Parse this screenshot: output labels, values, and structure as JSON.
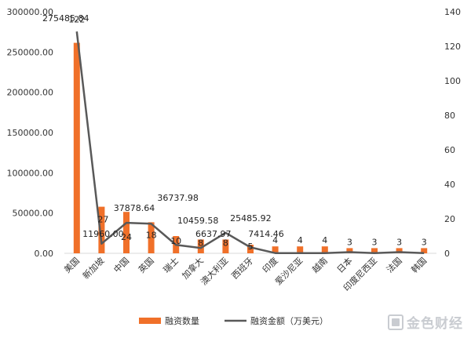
{
  "chart_data": {
    "type": "bar+line",
    "categories": [
      "美国",
      "新加坡",
      "中国",
      "英国",
      "瑞士",
      "加拿大",
      "澳大利亚",
      "西班牙",
      "印度",
      "爱沙尼亚",
      "越南",
      "日本",
      "印度尼西亚",
      "法国",
      "韩国"
    ],
    "series": [
      {
        "name": "融资数量",
        "type": "bar",
        "axis": "right",
        "color": "#F07029",
        "values": [
          122,
          27,
          24,
          18,
          10,
          8,
          8,
          5,
          4,
          4,
          4,
          3,
          3,
          3,
          3
        ],
        "labels": [
          "122",
          "27",
          "24",
          "18",
          "10",
          "8",
          "8",
          "5",
          "4",
          "4",
          "4",
          "3",
          "3",
          "3",
          "3"
        ]
      },
      {
        "name": "融资金额（万美元）",
        "type": "line",
        "axis": "left",
        "color": "#595959",
        "values": [
          275485.84,
          11960.0,
          37878.64,
          36737.98,
          10459.58,
          6637.97,
          25485.92,
          7414.46,
          300,
          300,
          300,
          1500,
          300,
          1500,
          300
        ],
        "labels": [
          "275485.84",
          "11960.00",
          "37878.64",
          "36737.98",
          "10459.58",
          "6637.97",
          "25485.92",
          "7414.46",
          "",
          "",
          "",
          "",
          "",
          "",
          ""
        ]
      }
    ],
    "y_left": {
      "ylim": [
        0,
        300000
      ],
      "ticks": [
        "0.00",
        "50000.00",
        "100000.00",
        "150000.00",
        "200000.00",
        "250000.00",
        "300000.00"
      ]
    },
    "y_right": {
      "ylim": [
        0,
        140
      ],
      "ticks": [
        "0",
        "20",
        "40",
        "60",
        "80",
        "100",
        "120",
        "140"
      ]
    },
    "grid": false,
    "legend_position": "bottom"
  },
  "watermark": {
    "text": "金色财经"
  }
}
